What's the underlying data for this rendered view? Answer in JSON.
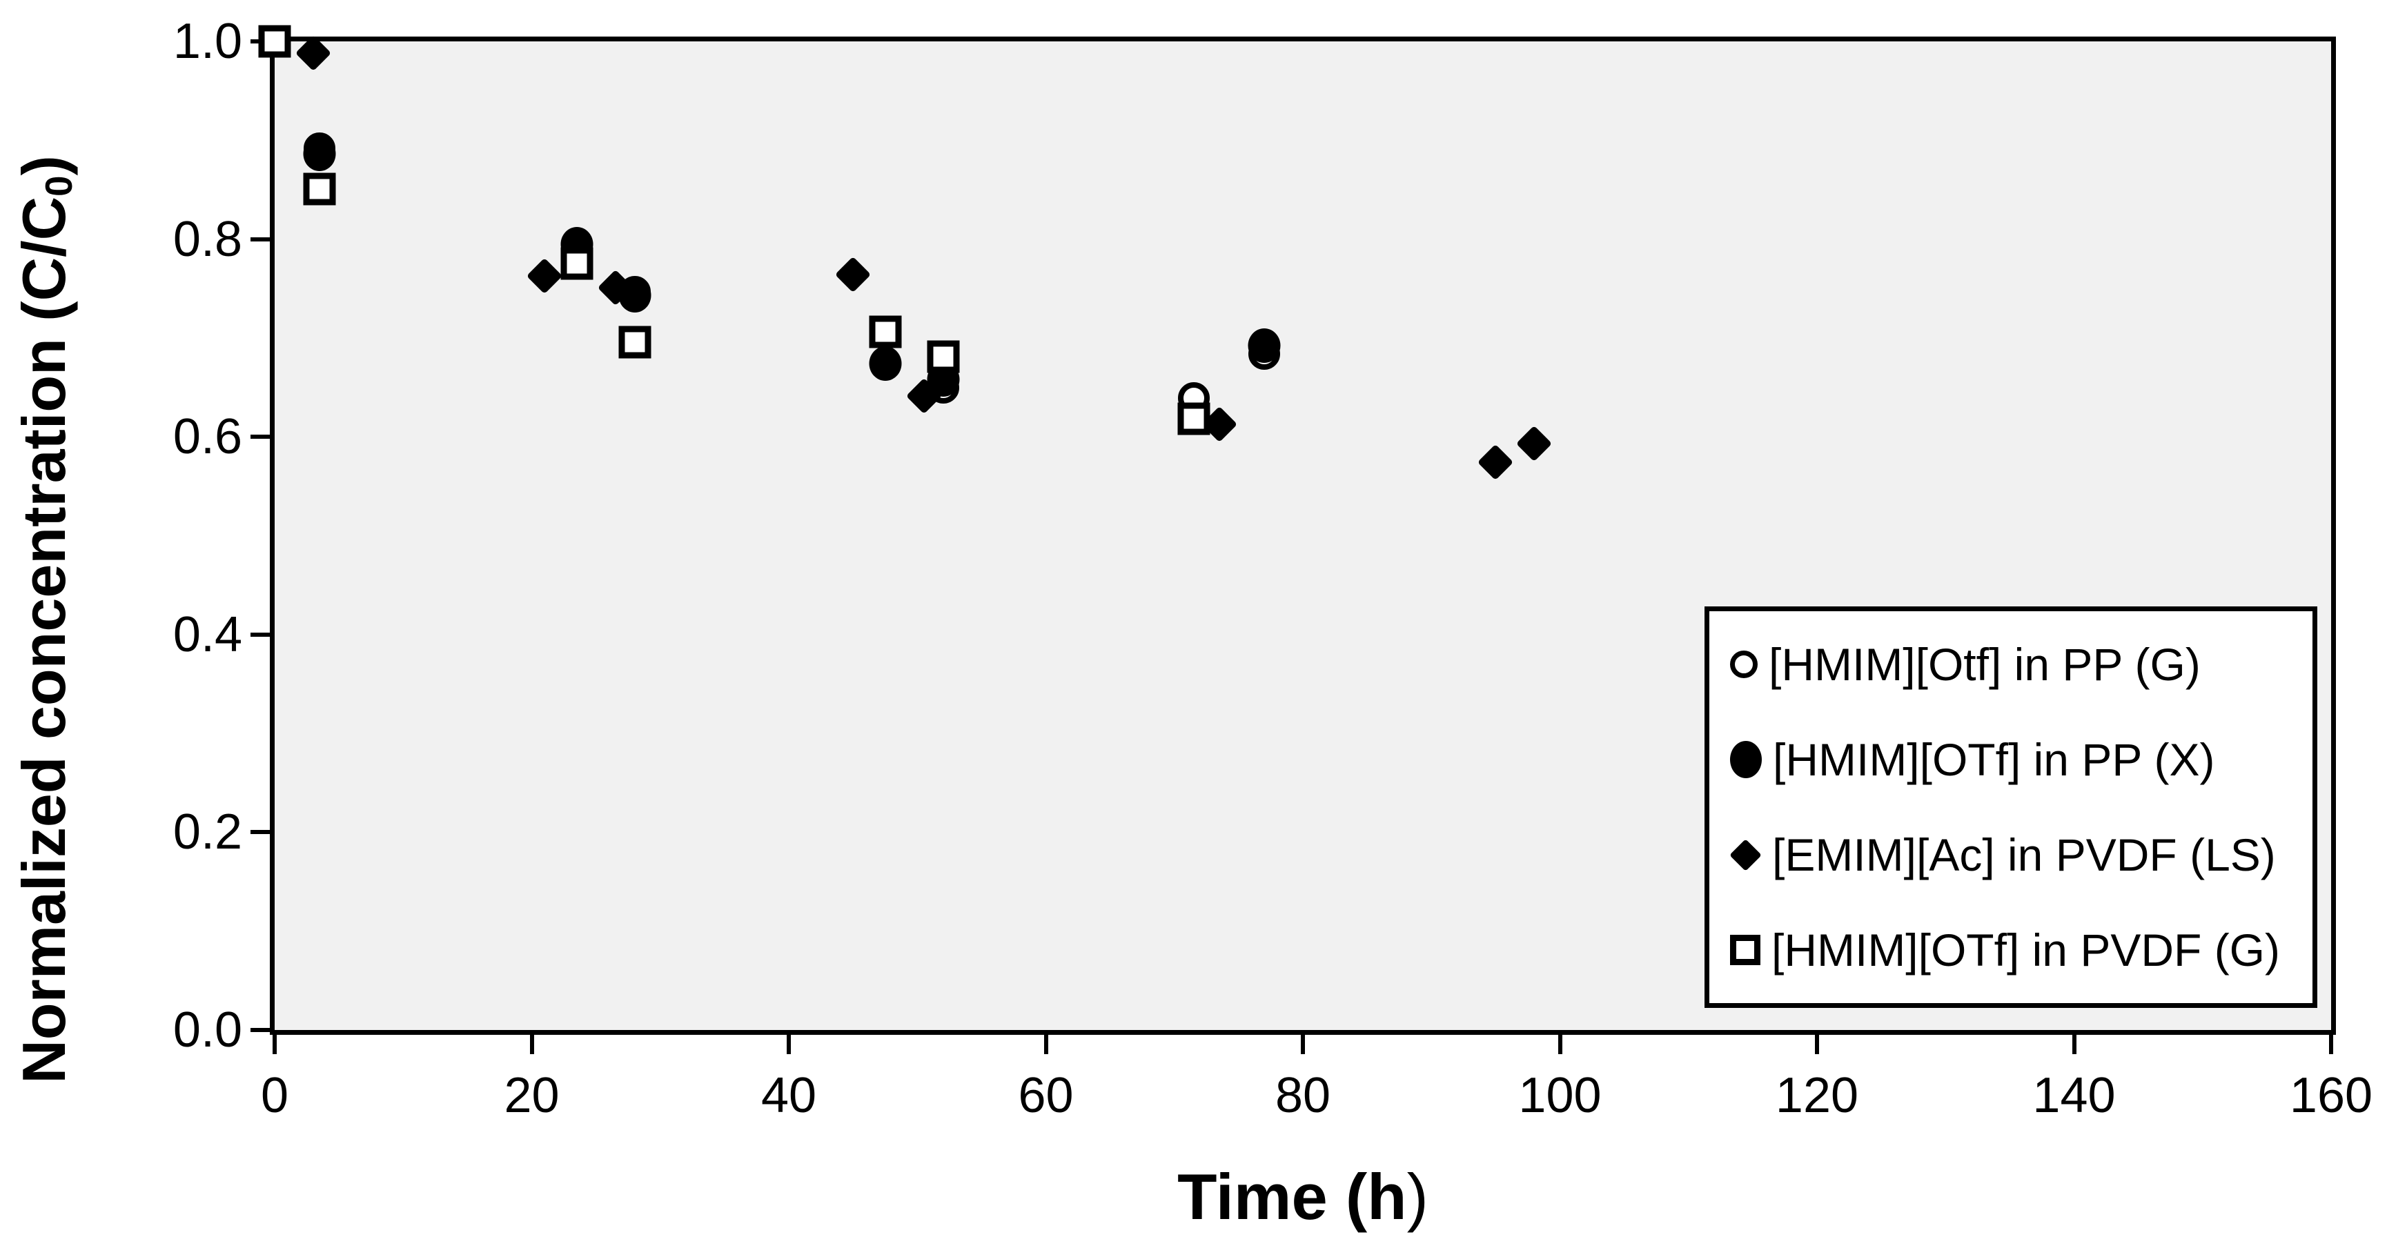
{
  "chart_data": {
    "type": "scatter",
    "title": "",
    "xlabel": "Time (h)",
    "xlabel_bold_part": "Time (h",
    "xlabel_regular_part": ")",
    "ylabel": "Normalized concentration (C/C0)",
    "ylabel_main": "Normalized concentration (C/C",
    "ylabel_sub": "0",
    "ylabel_close": ")",
    "xlim": [
      0,
      160
    ],
    "ylim": [
      0.0,
      1.0
    ],
    "x_ticks": [
      "0",
      "20",
      "40",
      "60",
      "80",
      "100",
      "120",
      "140",
      "160"
    ],
    "y_ticks": [
      "1.0",
      "0.8",
      "0.6",
      "0.4",
      "0.2",
      "0.0"
    ],
    "grid": false,
    "plot_bg_color": "#f1f1f1",
    "axis_color": "#000000",
    "legend_position": "inside lower right",
    "series": [
      {
        "name": "[HMIM][Otf] in PP (G)",
        "marker": "circle-open",
        "points": [
          [
            3.5,
            0.892
          ],
          [
            28,
            0.747
          ],
          [
            52,
            0.65
          ],
          [
            71.5,
            0.639
          ],
          [
            77,
            0.684
          ]
        ]
      },
      {
        "name": "[HMIM][OTf] in PP (X)",
        "marker": "circle-filled",
        "points": [
          [
            3.5,
            0.886
          ],
          [
            23.5,
            0.795
          ],
          [
            28,
            0.743
          ],
          [
            47.5,
            0.674
          ],
          [
            52,
            0.658
          ],
          [
            77,
            0.692
          ]
        ]
      },
      {
        "name": "[EMIM][Ac] in PVDF (LS)",
        "marker": "diamond-filled",
        "points": [
          [
            3,
            0.988
          ],
          [
            21,
            0.763
          ],
          [
            26.5,
            0.751
          ],
          [
            45,
            0.764
          ],
          [
            50.5,
            0.641
          ],
          [
            73.5,
            0.613
          ],
          [
            95,
            0.574
          ],
          [
            98,
            0.593
          ]
        ]
      },
      {
        "name": "[HMIM][OTf] in PVDF (G)",
        "marker": "square-open",
        "points": [
          [
            0,
            1.0
          ],
          [
            3.5,
            0.851
          ],
          [
            23.5,
            0.775
          ],
          [
            28,
            0.696
          ],
          [
            47.5,
            0.706
          ],
          [
            52,
            0.681
          ],
          [
            71.5,
            0.618
          ]
        ]
      }
    ]
  }
}
